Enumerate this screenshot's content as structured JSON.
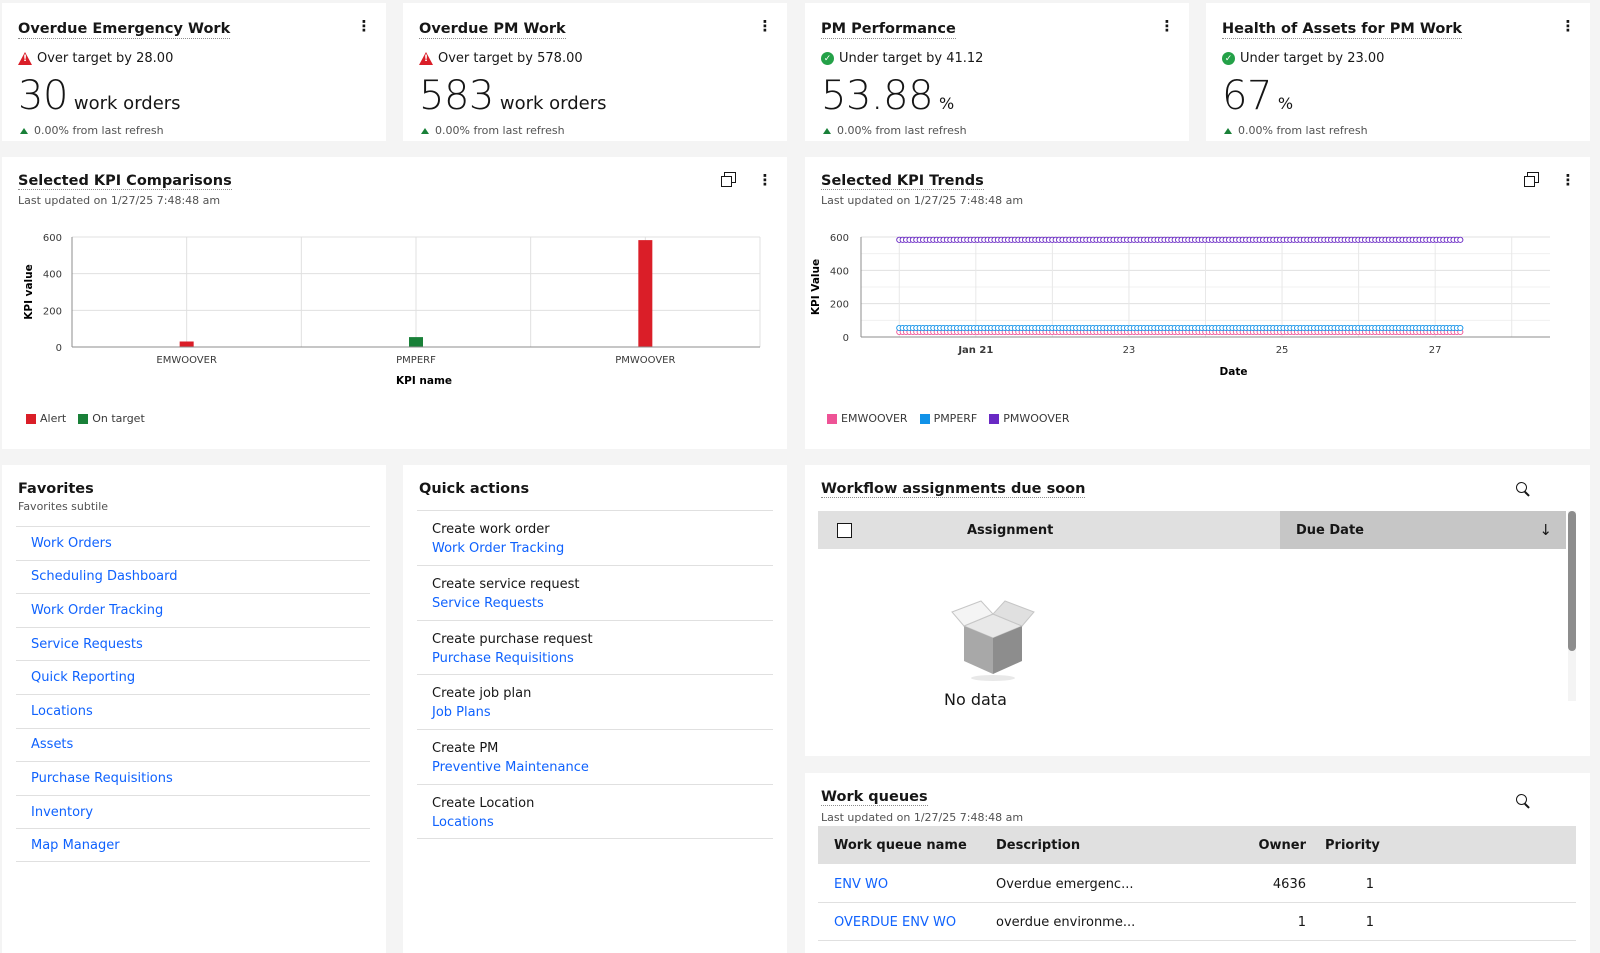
{
  "kpis": [
    {
      "title": "Overdue Emergency Work",
      "status": "Over target by 28.00",
      "status_type": "alert",
      "value": "30",
      "unit": "work orders",
      "refresh": "0.00% from last refresh"
    },
    {
      "title": "Overdue PM Work",
      "status": "Over target by 578.00",
      "status_type": "alert",
      "value": "583",
      "unit": "work orders",
      "refresh": "0.00% from last refresh"
    },
    {
      "title": "PM Performance",
      "status": "Under target by 41.12",
      "status_type": "ok",
      "value": "53.88",
      "unit": "%",
      "refresh": "0.00% from last refresh"
    },
    {
      "title": "Health of Assets for PM Work",
      "status": "Under target by 23.00",
      "status_type": "ok",
      "value": "67",
      "unit": "%",
      "refresh": "0.00% from last refresh"
    }
  ],
  "comparisons": {
    "title": "Selected KPI Comparisons",
    "updated": "Last updated on 1/27/25 7:48:48 am",
    "legend": [
      {
        "label": "Alert",
        "color": "#da1e28"
      },
      {
        "label": "On target",
        "color": "#198038"
      }
    ]
  },
  "trends": {
    "title": "Selected KPI Trends",
    "updated": "Last updated on 1/27/25 7:48:48 am",
    "legend": [
      {
        "label": "EMWOOVER",
        "color": "#ee5396"
      },
      {
        "label": "PMPERF",
        "color": "#1192e8"
      },
      {
        "label": "PMWOOVER",
        "color": "#6929c4"
      }
    ]
  },
  "chart_data": [
    {
      "type": "bar",
      "categories": [
        "EMWOOVER",
        "PMPERF",
        "PMWOOVER"
      ],
      "series": [
        {
          "name": "Alert",
          "values": [
            30,
            null,
            583
          ]
        },
        {
          "name": "On target",
          "values": [
            null,
            54,
            null
          ]
        }
      ],
      "colors": [
        "#da1e28",
        "#198038",
        "#da1e28"
      ],
      "xlabel": "KPI name",
      "ylabel": "KPI value",
      "ylim": [
        0,
        600
      ],
      "yticks": [
        "0",
        "200",
        "400",
        "600"
      ],
      "grid": true,
      "legend": "bottom-left"
    },
    {
      "type": "line",
      "x": [
        "Jan 20",
        "Jan 27"
      ],
      "xticks": [
        "Jan 21",
        "23",
        "25",
        "27"
      ],
      "series": [
        {
          "name": "EMWOOVER",
          "values": [
            30,
            30
          ]
        },
        {
          "name": "PMPERF",
          "values": [
            54,
            54
          ]
        },
        {
          "name": "PMWOOVER",
          "values": [
            583,
            583
          ]
        }
      ],
      "xlabel": "Date",
      "ylabel": "KPI Value",
      "ylim": [
        0,
        600
      ],
      "yticks": [
        "0",
        "200",
        "400",
        "600"
      ],
      "grid": true,
      "legend": "bottom-left"
    }
  ],
  "favorites": {
    "title": "Favorites",
    "subtitle": "Favorites subtile",
    "items": [
      "Work Orders",
      "Scheduling Dashboard",
      "Work Order Tracking",
      "Service Requests",
      "Quick Reporting",
      "Locations",
      "Assets",
      "Purchase Requisitions",
      "Inventory",
      "Map Manager"
    ]
  },
  "quick_actions": {
    "title": "Quick actions",
    "items": [
      {
        "label": "Create work order",
        "link": "Work Order Tracking"
      },
      {
        "label": "Create service request",
        "link": "Service Requests"
      },
      {
        "label": "Create purchase request",
        "link": "Purchase Requisitions"
      },
      {
        "label": "Create job plan",
        "link": "Job Plans"
      },
      {
        "label": "Create PM",
        "link": "Preventive Maintenance"
      },
      {
        "label": "Create Location",
        "link": "Locations"
      }
    ]
  },
  "workflow": {
    "title": "Workflow assignments due soon",
    "columns": {
      "assignment": "Assignment",
      "due_date": "Due Date"
    },
    "sort_icon": "arrow-down-icon",
    "empty": "No data"
  },
  "work_queues": {
    "title": "Work queues",
    "updated": "Last updated on 1/27/25 7:48:48 am",
    "columns": {
      "name": "Work queue name",
      "description": "Description",
      "owner": "Owner",
      "priority": "Priority"
    },
    "rows": [
      {
        "name": "ENV WO",
        "description": "Overdue emergenc...",
        "owner": "4636",
        "priority": "1"
      },
      {
        "name": "OVERDUE ENV WO",
        "description": "overdue environme...",
        "owner": "1",
        "priority": "1"
      }
    ]
  }
}
